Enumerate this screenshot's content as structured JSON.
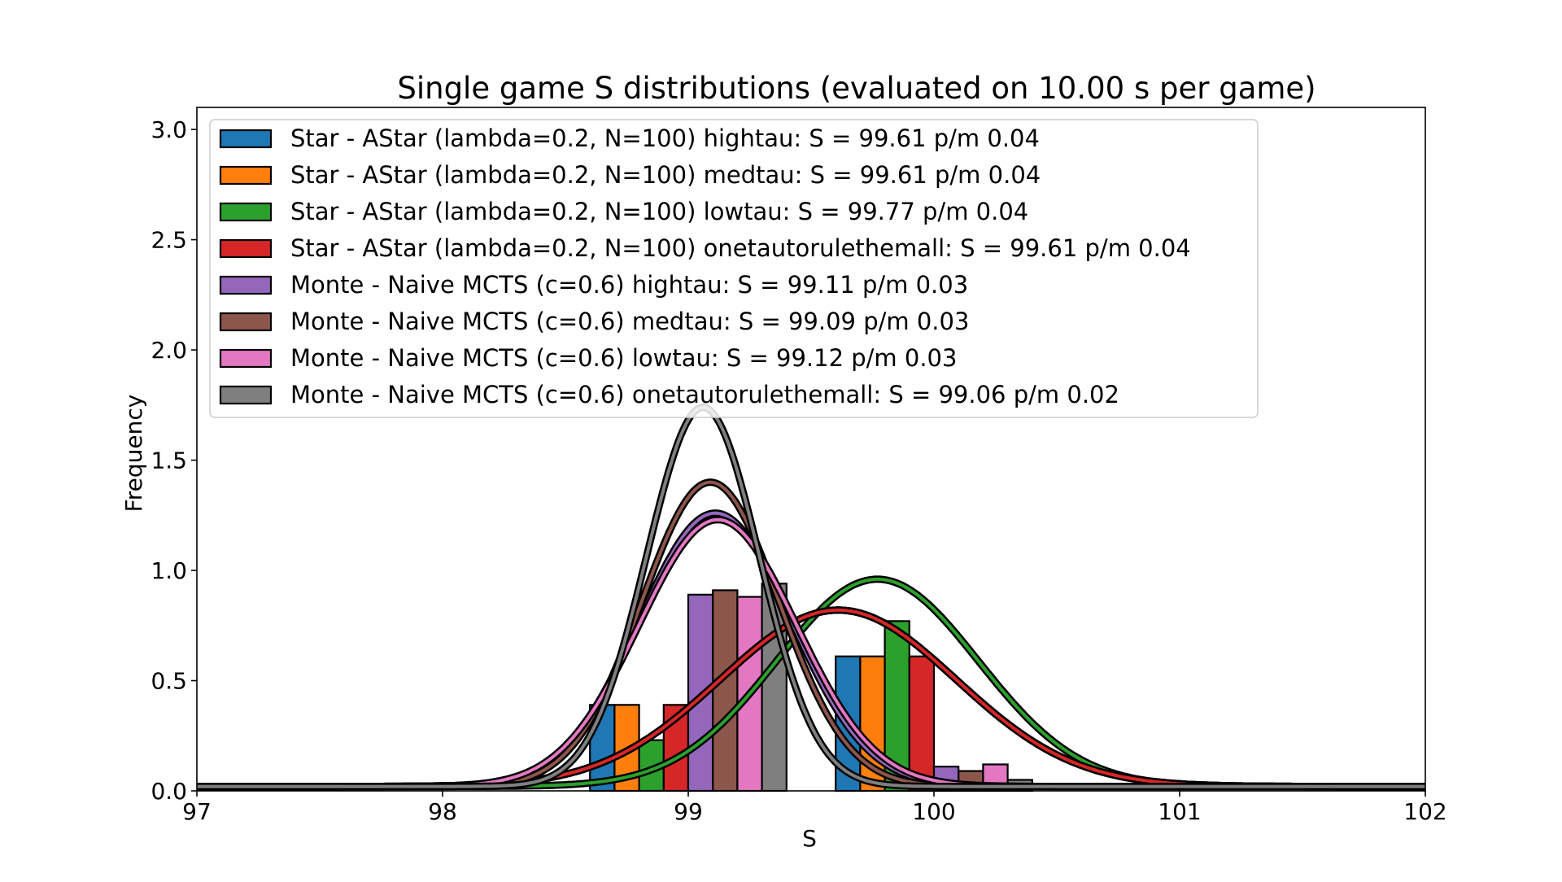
{
  "chart_data": {
    "type": "bar",
    "title": "Single game S distributions (evaluated on 10.00 s per game)",
    "xlabel": "S",
    "ylabel": "Frequency",
    "xlim": [
      97,
      102
    ],
    "ylim": [
      0,
      3.1
    ],
    "x_ticks": [
      "97",
      "98",
      "99",
      "100",
      "101",
      "102"
    ],
    "y_ticks": [
      "0.0",
      "0.5",
      "1.0",
      "1.5",
      "2.0",
      "2.5",
      "3.0"
    ],
    "grid": false,
    "legend_position": "top-left",
    "bin_width": 0.1,
    "series": [
      {
        "name": "Star - AStar (lambda=0.2, N=100) hightau: S = 99.61 p/m 0.04",
        "color": "#1f77b4",
        "bars": [
          [
            98.65,
            0.39
          ],
          [
            99.65,
            0.61
          ]
        ],
        "fit": {
          "mean": 99.61,
          "peak": 0.82,
          "sigma": 0.48
        }
      },
      {
        "name": "Star - AStar (lambda=0.2, N=100) medtau: S = 99.61 p/m 0.04",
        "color": "#ff7f0e",
        "bars": [
          [
            98.75,
            0.39
          ],
          [
            99.75,
            0.61
          ]
        ],
        "fit": {
          "mean": 99.61,
          "peak": 0.82,
          "sigma": 0.48
        }
      },
      {
        "name": "Star - AStar (lambda=0.2, N=100) lowtau: S = 99.77 p/m 0.04",
        "color": "#2ca02c",
        "bars": [
          [
            98.85,
            0.23
          ],
          [
            99.85,
            0.77
          ]
        ],
        "fit": {
          "mean": 99.77,
          "peak": 0.96,
          "sigma": 0.41
        }
      },
      {
        "name": "Star - AStar (lambda=0.2, N=100) onetautorulethemall: S = 99.61 p/m 0.04",
        "color": "#d62728",
        "bars": [
          [
            98.95,
            0.39
          ],
          [
            99.95,
            0.61
          ]
        ],
        "fit": {
          "mean": 99.61,
          "peak": 0.82,
          "sigma": 0.48
        }
      },
      {
        "name": "Monte - Naive MCTS (c=0.6) hightau: S = 99.11 p/m 0.03",
        "color": "#9467bd",
        "bars": [
          [
            99.05,
            0.89
          ],
          [
            100.05,
            0.11
          ]
        ],
        "fit": {
          "mean": 99.11,
          "peak": 1.26,
          "sigma": 0.31
        }
      },
      {
        "name": "Monte - Naive MCTS (c=0.6) medtau: S = 99.09 p/m 0.03",
        "color": "#8c564b",
        "bars": [
          [
            99.15,
            0.91
          ],
          [
            100.15,
            0.09
          ]
        ],
        "fit": {
          "mean": 99.09,
          "peak": 1.4,
          "sigma": 0.28
        }
      },
      {
        "name": "Monte - Naive MCTS (c=0.6) lowtau: S = 99.12 p/m 0.03",
        "color": "#e377c2",
        "bars": [
          [
            99.25,
            0.88
          ],
          [
            100.25,
            0.12
          ]
        ],
        "fit": {
          "mean": 99.12,
          "peak": 1.23,
          "sigma": 0.32
        }
      },
      {
        "name": "Monte - Naive MCTS (c=0.6) onetautorulethemall: S = 99.06 p/m 0.02",
        "color": "#7f7f7f",
        "bars": [
          [
            99.35,
            0.94
          ],
          [
            100.35,
            0.05
          ]
        ],
        "fit": {
          "mean": 99.06,
          "peak": 1.74,
          "sigma": 0.23
        }
      }
    ]
  }
}
